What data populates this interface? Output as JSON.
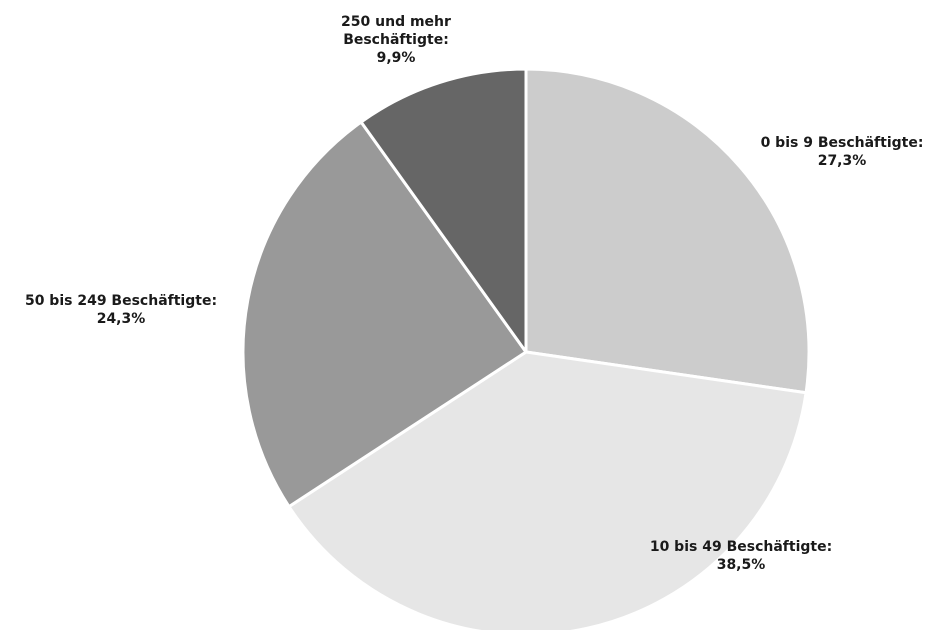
{
  "chart_data": {
    "type": "pie",
    "slices": [
      {
        "label_lines": [
          "0 bis 9 Beschäftigte:",
          "27,3%"
        ],
        "value": 27.3,
        "color": "#cccccc"
      },
      {
        "label_lines": [
          "10 bis 49 Beschäftigte:",
          "38,5%"
        ],
        "value": 38.5,
        "color": "#e6e6e6"
      },
      {
        "label_lines": [
          "50 bis 249 Beschäftigte:",
          "24,3%"
        ],
        "value": 24.3,
        "color": "#999999"
      },
      {
        "label_lines": [
          "250 und mehr",
          "Beschäftigte:",
          "9,9%"
        ],
        "value": 9.9,
        "color": "#666666"
      }
    ],
    "start_angle": "12 o'clock",
    "direction": "clockwise",
    "separator_color": "#ffffff",
    "legend": "none"
  }
}
